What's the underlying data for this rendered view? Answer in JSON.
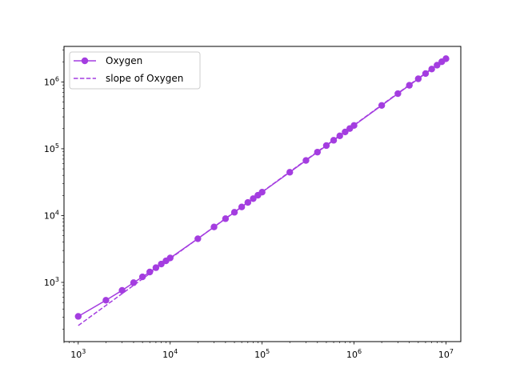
{
  "chart_data": {
    "type": "line",
    "title": "",
    "xlabel": "",
    "ylabel": "",
    "xscale": "log",
    "yscale": "log",
    "xlim": [
      700,
      14500000
    ],
    "ylim": [
      130,
      3400000
    ],
    "grid": false,
    "legend_position": "top-left",
    "x_ticks": [
      {
        "value": 1000,
        "base": "10",
        "exp": "3"
      },
      {
        "value": 10000,
        "base": "10",
        "exp": "4"
      },
      {
        "value": 100000,
        "base": "10",
        "exp": "5"
      },
      {
        "value": 1000000,
        "base": "10",
        "exp": "6"
      },
      {
        "value": 10000000,
        "base": "10",
        "exp": "7"
      }
    ],
    "y_ticks": [
      {
        "value": 1000,
        "base": "10",
        "exp": "3"
      },
      {
        "value": 10000,
        "base": "10",
        "exp": "4"
      },
      {
        "value": 100000,
        "base": "10",
        "exp": "5"
      },
      {
        "value": 1000000,
        "base": "10",
        "exp": "6"
      }
    ],
    "series": [
      {
        "name": "Oxygen",
        "color": "#a43de0",
        "style": "solid-with-markers",
        "x": [
          1000,
          2000,
          3000,
          4000,
          5000,
          6000,
          7000,
          8000,
          9000,
          10000,
          20000,
          30000,
          40000,
          50000,
          60000,
          70000,
          80000,
          90000,
          100000,
          200000,
          300000,
          400000,
          500000,
          600000,
          700000,
          800000,
          900000,
          1000000,
          2000000,
          3000000,
          4000000,
          5000000,
          6000000,
          7000000,
          8000000,
          9000000,
          10000000
        ],
        "y": [
          310,
          540,
          760,
          990,
          1210,
          1430,
          1660,
          1880,
          2100,
          2320,
          4500,
          6750,
          8980,
          11200,
          13450,
          15700,
          17900,
          20150,
          22400,
          44500,
          66800,
          89000,
          111500,
          133800,
          156000,
          178500,
          200800,
          223000,
          445000,
          668000,
          890000,
          1113000,
          1335000,
          1558000,
          1780000,
          2003000,
          2226000
        ]
      },
      {
        "name": "slope of Oxygen",
        "color": "#a43de0",
        "style": "dashed",
        "x": [
          1000,
          10000000
        ],
        "y": [
          226,
          2260000
        ]
      }
    ]
  }
}
